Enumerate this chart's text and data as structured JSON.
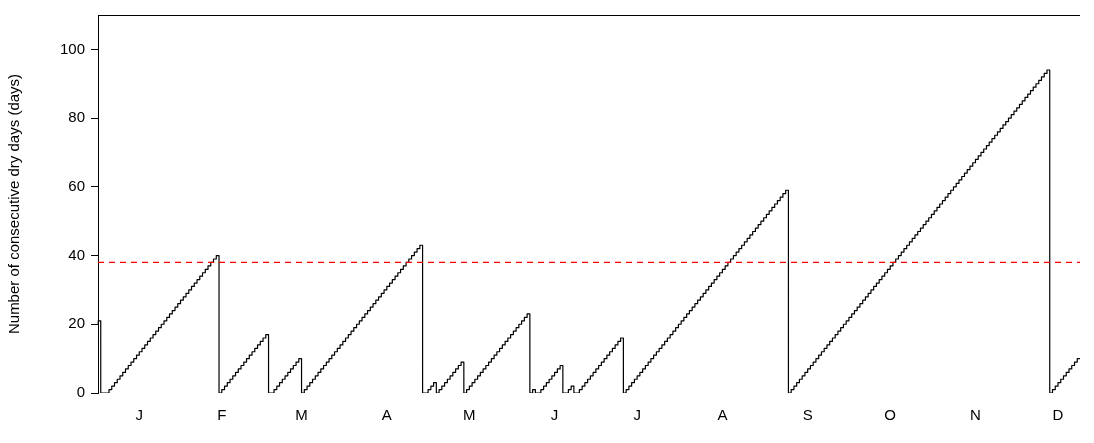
{
  "chart_data": {
    "type": "step",
    "ylabel": "Number of consecutive dry days (days)",
    "ylim": [
      0,
      110
    ],
    "yticks": [
      0,
      20,
      40,
      60,
      80,
      100
    ],
    "grid": false,
    "legend": false,
    "ref_lines": [
      {
        "axis": "y",
        "value": 38,
        "color": "#ff0000",
        "line_style": "dashed"
      }
    ],
    "categories": [
      null,
      null,
      null,
      null,
      null,
      null,
      null,
      null,
      null,
      null,
      null,
      null,
      null,
      null,
      null,
      "J",
      null,
      null,
      null,
      null,
      null,
      null,
      null,
      null,
      null,
      null,
      null,
      null,
      null,
      null,
      null,
      null,
      null,
      null,
      null,
      null,
      null,
      null,
      null,
      null,
      null,
      null,
      null,
      null,
      null,
      "F",
      null,
      null,
      null,
      null,
      null,
      null,
      null,
      null,
      null,
      null,
      null,
      null,
      null,
      null,
      null,
      null,
      null,
      null,
      null,
      null,
      null,
      null,
      null,
      null,
      null,
      null,
      null,
      null,
      "M",
      null,
      null,
      null,
      null,
      null,
      null,
      null,
      null,
      null,
      null,
      null,
      null,
      null,
      null,
      null,
      null,
      null,
      null,
      null,
      null,
      null,
      null,
      null,
      null,
      null,
      null,
      null,
      null,
      null,
      null,
      "A",
      null,
      null,
      null,
      null,
      null,
      null,
      null,
      null,
      null,
      null,
      null,
      null,
      null,
      null,
      null,
      null,
      null,
      null,
      null,
      null,
      null,
      null,
      null,
      null,
      null,
      null,
      null,
      null,
      null,
      "M",
      null,
      null,
      null,
      null,
      null,
      null,
      null,
      null,
      null,
      null,
      null,
      null,
      null,
      null,
      null,
      null,
      null,
      null,
      null,
      null,
      null,
      null,
      null,
      null,
      null,
      null,
      null,
      null,
      null,
      null,
      "J",
      null,
      null,
      null,
      null,
      null,
      null,
      null,
      null,
      null,
      null,
      null,
      null,
      null,
      null,
      null,
      null,
      null,
      null,
      null,
      null,
      null,
      null,
      null,
      null,
      null,
      null,
      null,
      null,
      null,
      "J",
      null,
      null,
      null,
      null,
      null,
      null,
      null,
      null,
      null,
      null,
      null,
      null,
      null,
      null,
      null,
      null,
      null,
      null,
      null,
      null,
      null,
      null,
      null,
      null,
      null,
      null,
      null,
      null,
      null,
      null,
      "A",
      null,
      null,
      null,
      null,
      null,
      null,
      null,
      null,
      null,
      null,
      null,
      null,
      null,
      null,
      null,
      null,
      null,
      null,
      null,
      null,
      null,
      null,
      null,
      null,
      null,
      null,
      null,
      null,
      null,
      null,
      "S",
      null,
      null,
      null,
      null,
      null,
      null,
      null,
      null,
      null,
      null,
      null,
      null,
      null,
      null,
      null,
      null,
      null,
      null,
      null,
      null,
      null,
      null,
      null,
      null,
      null,
      null,
      null,
      null,
      null,
      "O",
      null,
      null,
      null,
      null,
      null,
      null,
      null,
      null,
      null,
      null,
      null,
      null,
      null,
      null,
      null,
      null,
      null,
      null,
      null,
      null,
      null,
      null,
      null,
      null,
      null,
      null,
      null,
      null,
      null,
      null,
      "N",
      null,
      null,
      null,
      null,
      null,
      null,
      null,
      null,
      null,
      null,
      null,
      null,
      null,
      null,
      null,
      null,
      null,
      null,
      null,
      null,
      null,
      null,
      null,
      null,
      null,
      null,
      null,
      null,
      null,
      "D",
      null,
      null,
      null,
      null,
      null,
      null,
      null,
      null
    ],
    "series": [
      {
        "color": "#000000",
        "values": [
          20,
          21,
          0,
          0,
          0,
          1,
          2,
          3,
          4,
          5,
          6,
          7,
          8,
          9,
          10,
          11,
          12,
          13,
          14,
          15,
          16,
          17,
          18,
          19,
          20,
          21,
          22,
          23,
          24,
          25,
          26,
          27,
          28,
          29,
          30,
          31,
          32,
          33,
          34,
          35,
          36,
          37,
          38,
          39,
          40,
          0,
          1,
          2,
          3,
          4,
          5,
          6,
          7,
          8,
          9,
          10,
          11,
          12,
          13,
          14,
          15,
          16,
          17,
          0,
          0,
          1,
          2,
          3,
          4,
          5,
          6,
          7,
          8,
          9,
          10,
          0,
          1,
          2,
          3,
          4,
          5,
          6,
          7,
          8,
          9,
          10,
          11,
          12,
          13,
          14,
          15,
          16,
          17,
          18,
          19,
          20,
          21,
          22,
          23,
          24,
          25,
          26,
          27,
          28,
          29,
          30,
          31,
          32,
          33,
          34,
          35,
          36,
          37,
          38,
          39,
          40,
          41,
          42,
          43,
          0,
          0,
          1,
          2,
          3,
          0,
          1,
          2,
          3,
          4,
          5,
          6,
          7,
          8,
          9,
          0,
          1,
          2,
          3,
          4,
          5,
          6,
          7,
          8,
          9,
          10,
          11,
          12,
          13,
          14,
          15,
          16,
          17,
          18,
          19,
          20,
          21,
          22,
          23,
          0,
          1,
          0,
          0,
          1,
          2,
          3,
          4,
          5,
          6,
          7,
          8,
          0,
          0,
          1,
          2,
          0,
          0,
          1,
          2,
          3,
          4,
          5,
          6,
          7,
          8,
          9,
          10,
          11,
          12,
          13,
          14,
          15,
          16,
          0,
          1,
          2,
          3,
          4,
          5,
          6,
          7,
          8,
          9,
          10,
          11,
          12,
          13,
          14,
          15,
          16,
          17,
          18,
          19,
          20,
          21,
          22,
          23,
          24,
          25,
          26,
          27,
          28,
          29,
          30,
          31,
          32,
          33,
          34,
          35,
          36,
          37,
          38,
          39,
          40,
          41,
          42,
          43,
          44,
          45,
          46,
          47,
          48,
          49,
          50,
          51,
          52,
          53,
          54,
          55,
          56,
          57,
          58,
          59,
          0,
          1,
          2,
          3,
          4,
          5,
          6,
          7,
          8,
          9,
          10,
          11,
          12,
          13,
          14,
          15,
          16,
          17,
          18,
          19,
          20,
          21,
          22,
          23,
          24,
          25,
          26,
          27,
          28,
          29,
          30,
          31,
          32,
          33,
          34,
          35,
          36,
          37,
          38,
          39,
          40,
          41,
          42,
          43,
          44,
          45,
          46,
          47,
          48,
          49,
          50,
          51,
          52,
          53,
          54,
          55,
          56,
          57,
          58,
          59,
          60,
          61,
          62,
          63,
          64,
          65,
          66,
          67,
          68,
          69,
          70,
          71,
          72,
          73,
          74,
          75,
          76,
          77,
          78,
          79,
          80,
          81,
          82,
          83,
          84,
          85,
          86,
          87,
          88,
          89,
          90,
          91,
          92,
          93,
          94,
          0,
          1,
          2,
          3,
          4,
          5,
          6,
          7,
          8,
          9,
          10
        ]
      }
    ]
  }
}
